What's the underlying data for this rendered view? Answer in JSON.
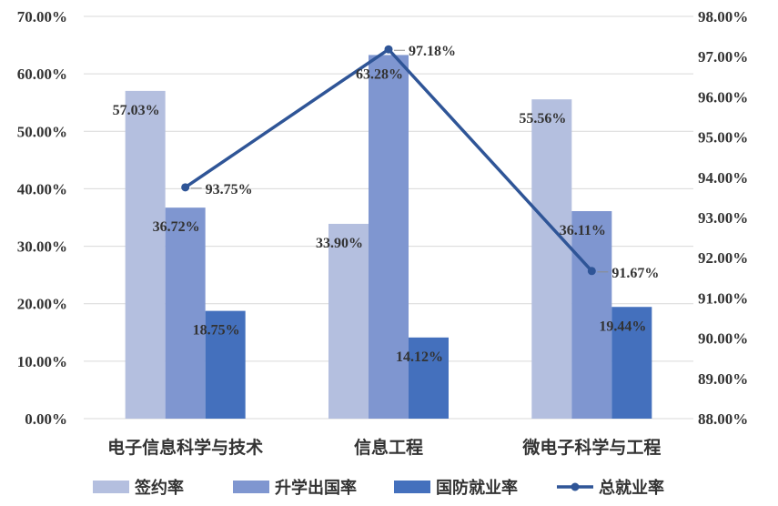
{
  "chart_data": {
    "type": "bar",
    "categories": [
      "电子信息科学与技术",
      "信息工程",
      "微电子科学与工程"
    ],
    "series": [
      {
        "name": "签约率",
        "axis": "left",
        "kind": "bar",
        "color": "#b4bfdf",
        "values": [
          57.03,
          33.9,
          55.56
        ],
        "labels": [
          "57.03%",
          "33.90%",
          "55.56%"
        ]
      },
      {
        "name": "升学出国率",
        "axis": "left",
        "kind": "bar",
        "color": "#7f96d0",
        "values": [
          36.72,
          63.28,
          36.11
        ],
        "labels": [
          "36.72%",
          "63.28%",
          "36.11%"
        ]
      },
      {
        "name": "国防就业率",
        "axis": "left",
        "kind": "bar",
        "color": "#4470bd",
        "values": [
          18.75,
          14.12,
          19.44
        ],
        "labels": [
          "18.75%",
          "14.12%",
          "19.44%"
        ]
      },
      {
        "name": "总就业率",
        "axis": "right",
        "kind": "line",
        "color": "#2f5597",
        "values": [
          93.75,
          97.18,
          91.67
        ],
        "labels": [
          "93.75%",
          "97.18%",
          "91.67%"
        ]
      }
    ],
    "left_axis": {
      "ylim": [
        0,
        70
      ],
      "ticks": [
        "0.00%",
        "10.00%",
        "20.00%",
        "30.00%",
        "40.00%",
        "50.00%",
        "60.00%",
        "70.00%"
      ]
    },
    "right_axis": {
      "ylim": [
        88,
        98
      ],
      "ticks": [
        "88.00%",
        "89.00%",
        "90.00%",
        "91.00%",
        "92.00%",
        "93.00%",
        "94.00%",
        "95.00%",
        "96.00%",
        "97.00%",
        "98.00%"
      ]
    },
    "grid": true,
    "legend_position": "bottom"
  }
}
